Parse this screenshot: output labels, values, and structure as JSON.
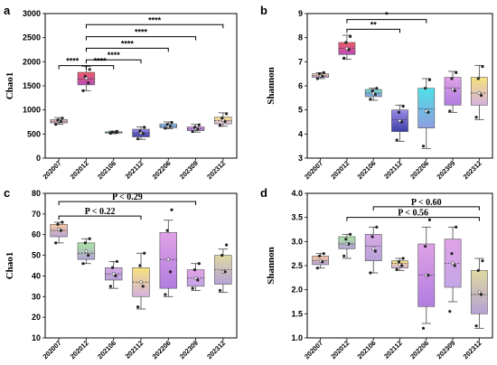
{
  "chart_data": [
    {
      "panel": "a",
      "type": "box",
      "ylabel": "Chao1",
      "ylim": [
        0,
        3000
      ],
      "yticks": [
        0,
        500,
        1000,
        1500,
        2000,
        2500,
        3000
      ],
      "categories": [
        "202007",
        "202012",
        "202106",
        "202112",
        "202206",
        "202309",
        "202312"
      ],
      "colors": [
        [
          "#f6c79e",
          "#b6a2d6"
        ],
        [
          "#f05a64",
          "#b64fbd"
        ],
        [
          "#6ed9c9",
          "#8a9fe0"
        ],
        [
          "#9a8ce8",
          "#3d3fa8"
        ],
        [
          "#7fd1f0",
          "#8e9ee0"
        ],
        [
          "#e0a2e6",
          "#b07de0"
        ],
        [
          "#f7e27a",
          "#d3b1e0"
        ]
      ],
      "boxes": [
        {
          "whislo": 700,
          "q1": 730,
          "med": 765,
          "mean": 770,
          "q3": 800,
          "whishi": 840,
          "points": [
            700,
            760,
            790,
            830
          ]
        },
        {
          "whislo": 1400,
          "q1": 1520,
          "med": 1640,
          "mean": 1660,
          "q3": 1780,
          "whishi": 1900,
          "points": [
            1400,
            1560,
            1700,
            1840
          ]
        },
        {
          "whislo": 510,
          "q1": 520,
          "med": 530,
          "mean": 532,
          "q3": 545,
          "whishi": 560,
          "points": [
            515,
            530,
            540,
            555
          ]
        },
        {
          "whislo": 390,
          "q1": 440,
          "med": 520,
          "mean": 520,
          "q3": 600,
          "whishi": 650,
          "points": [
            400,
            510,
            560,
            640
          ]
        },
        {
          "whislo": 610,
          "q1": 630,
          "med": 660,
          "mean": 665,
          "q3": 710,
          "whishi": 750,
          "points": [
            620,
            660,
            700,
            740
          ]
        },
        {
          "whislo": 540,
          "q1": 570,
          "med": 610,
          "mean": 610,
          "q3": 650,
          "whishi": 700,
          "points": [
            550,
            600,
            640,
            690
          ]
        },
        {
          "whislo": 660,
          "q1": 710,
          "med": 780,
          "mean": 790,
          "q3": 850,
          "whishi": 940,
          "points": [
            680,
            760,
            830,
            920
          ]
        }
      ],
      "comparisons": [
        {
          "from": 0,
          "to": 1,
          "y": 1920,
          "label": "****"
        },
        {
          "from": 1,
          "to": 2,
          "y": 1920,
          "label": "****"
        },
        {
          "from": 1,
          "to": 3,
          "y": 2040,
          "label": "****"
        },
        {
          "from": 1,
          "to": 4,
          "y": 2280,
          "label": "****"
        },
        {
          "from": 1,
          "to": 5,
          "y": 2520,
          "label": "****"
        },
        {
          "from": 1,
          "to": 6,
          "y": 2770,
          "label": "****"
        }
      ]
    },
    {
      "panel": "b",
      "type": "box",
      "ylabel": "Shannon",
      "ylim": [
        3,
        9
      ],
      "yticks": [
        3,
        4,
        5,
        6,
        7,
        8,
        9
      ],
      "categories": [
        "202007",
        "202012",
        "202106",
        "202112",
        "202206",
        "202309",
        "202312"
      ],
      "colors": [
        [
          "#f6c79e",
          "#b6a2d6"
        ],
        [
          "#f05a64",
          "#b64fbd"
        ],
        [
          "#6ed9c9",
          "#8a9fe0"
        ],
        [
          "#9a8ce8",
          "#3d3fa8"
        ],
        [
          "#4fe0e8",
          "#8e9ee0"
        ],
        [
          "#e0a2e6",
          "#b07de0"
        ],
        [
          "#f7e27a",
          "#d3b1e0"
        ]
      ],
      "boxes": [
        {
          "whislo": 6.3,
          "q1": 6.35,
          "med": 6.42,
          "mean": 6.43,
          "q3": 6.5,
          "whishi": 6.55,
          "points": [
            6.3,
            6.4,
            6.5,
            6.55
          ]
        },
        {
          "whislo": 7.1,
          "q1": 7.3,
          "med": 7.55,
          "mean": 7.55,
          "q3": 7.8,
          "whishi": 8.1,
          "points": [
            7.15,
            7.5,
            7.8,
            8.05
          ]
        },
        {
          "whislo": 5.4,
          "q1": 5.55,
          "med": 5.7,
          "mean": 5.68,
          "q3": 5.85,
          "whishi": 5.9,
          "points": [
            5.45,
            5.65,
            5.8,
            5.9
          ]
        },
        {
          "whislo": 3.7,
          "q1": 4.1,
          "med": 4.6,
          "mean": 4.55,
          "q3": 5.0,
          "whishi": 5.2,
          "points": [
            3.75,
            4.5,
            4.9,
            5.15
          ]
        },
        {
          "whislo": 3.4,
          "q1": 4.25,
          "med": 5.05,
          "mean": 4.95,
          "q3": 5.9,
          "whishi": 6.3,
          "points": [
            3.5,
            4.9,
            5.9,
            6.25
          ]
        },
        {
          "whislo": 4.9,
          "q1": 5.2,
          "med": 5.9,
          "mean": 5.85,
          "q3": 6.35,
          "whishi": 6.6,
          "points": [
            4.95,
            5.8,
            6.3,
            6.55
          ]
        },
        {
          "whislo": 4.6,
          "q1": 5.2,
          "med": 5.7,
          "mean": 5.7,
          "q3": 6.35,
          "whishi": 6.85,
          "points": [
            4.7,
            5.6,
            6.3,
            6.8
          ]
        }
      ],
      "comparisons": [
        {
          "from": 1,
          "to": 3,
          "y": 8.35,
          "label": "**"
        },
        {
          "from": 1,
          "to": 4,
          "y": 8.75,
          "label": "*"
        }
      ]
    },
    {
      "panel": "c",
      "type": "box",
      "ylabel": "Chao1",
      "ylim": [
        10,
        80
      ],
      "yticks": [
        10,
        20,
        30,
        40,
        50,
        60,
        70,
        80
      ],
      "categories": [
        "202007",
        "202012",
        "202106",
        "202112",
        "202206",
        "202309",
        "202312"
      ],
      "colors": [
        [
          "#f6c79e",
          "#b6a2d6"
        ],
        [
          "#a8e6a0",
          "#b6a2d6"
        ],
        [
          "#d7a9e6",
          "#b6a2d6"
        ],
        [
          "#f7e27a",
          "#d3b1e0"
        ],
        [
          "#e0a2e6",
          "#b07de0"
        ],
        [
          "#e0a2e6",
          "#c3a6e6"
        ],
        [
          "#dfd9a0",
          "#b6a2d6"
        ]
      ],
      "boxes": [
        {
          "whislo": 56,
          "q1": 59,
          "med": 62,
          "mean": 62.5,
          "q3": 65,
          "whishi": 66,
          "points": [
            56,
            62,
            65,
            66
          ]
        },
        {
          "whislo": 46,
          "q1": 48,
          "med": 51,
          "mean": 52,
          "q3": 56,
          "whishi": 58,
          "points": [
            46,
            50,
            56,
            58
          ]
        },
        {
          "whislo": 34,
          "q1": 38,
          "med": 41,
          "mean": 41,
          "q3": 44,
          "whishi": 47,
          "points": [
            35,
            40,
            44,
            47
          ]
        },
        {
          "whislo": 24,
          "q1": 30,
          "med": 37,
          "mean": 37,
          "q3": 44,
          "whishi": 51,
          "points": [
            25,
            35,
            45,
            51
          ]
        },
        {
          "whislo": 30,
          "q1": 34,
          "med": 48,
          "mean": 48,
          "q3": 61,
          "whishi": 67,
          "points": [
            31,
            42,
            62,
            72
          ]
        },
        {
          "whislo": 33,
          "q1": 35,
          "med": 39,
          "mean": 39,
          "q3": 43,
          "whishi": 46,
          "points": [
            34,
            38,
            43,
            46
          ]
        },
        {
          "whislo": 32,
          "q1": 36,
          "med": 43,
          "mean": 42,
          "q3": 50,
          "whishi": 53,
          "points": [
            33,
            42,
            50,
            55
          ]
        }
      ],
      "comparisons": [
        {
          "from": 0,
          "to": 3,
          "y": 69,
          "label": "P < 0.22"
        },
        {
          "from": 0,
          "to": 5,
          "y": 76,
          "label": "P < 0.29"
        }
      ]
    },
    {
      "panel": "d",
      "type": "box",
      "ylabel": "Shannon",
      "ylim": [
        1.0,
        4.0
      ],
      "yticks": [
        1.0,
        1.5,
        2.0,
        2.5,
        3.0,
        3.5,
        4.0
      ],
      "categories": [
        "202007",
        "202012",
        "202106",
        "202112",
        "202206",
        "202309",
        "202312"
      ],
      "colors": [
        [
          "#f6c79e",
          "#b6a2d6"
        ],
        [
          "#a8e6a0",
          "#b6a2d6"
        ],
        [
          "#d7a9e6",
          "#b6a2d6"
        ],
        [
          "#f7e27a",
          "#d3b1e0"
        ],
        [
          "#e0a2e6",
          "#b07de0"
        ],
        [
          "#e0a2e6",
          "#c3a6e6"
        ],
        [
          "#dfd9a0",
          "#b6a2d6"
        ]
      ],
      "boxes": [
        {
          "whislo": 2.45,
          "q1": 2.52,
          "med": 2.6,
          "mean": 2.6,
          "q3": 2.7,
          "whishi": 2.75,
          "points": [
            2.45,
            2.58,
            2.7,
            2.75
          ]
        },
        {
          "whislo": 2.65,
          "q1": 2.85,
          "med": 2.95,
          "mean": 2.95,
          "q3": 3.1,
          "whishi": 3.15,
          "points": [
            2.7,
            2.95,
            3.05,
            3.15
          ]
        },
        {
          "whislo": 2.35,
          "q1": 2.6,
          "med": 2.9,
          "mean": 2.85,
          "q3": 3.15,
          "whishi": 3.3,
          "points": [
            2.35,
            2.8,
            3.1,
            3.3
          ]
        },
        {
          "whislo": 2.4,
          "q1": 2.45,
          "med": 2.55,
          "mean": 2.52,
          "q3": 2.6,
          "whishi": 2.65,
          "points": [
            2.42,
            2.5,
            2.58,
            2.65
          ]
        },
        {
          "whislo": 1.3,
          "q1": 1.65,
          "med": 2.3,
          "mean": 2.3,
          "q3": 2.95,
          "whishi": 3.3,
          "points": [
            1.2,
            2.3,
            2.9,
            3.45
          ]
        },
        {
          "whislo": 1.75,
          "q1": 2.05,
          "med": 2.55,
          "mean": 2.55,
          "q3": 3.05,
          "whishi": 3.3,
          "points": [
            1.55,
            2.5,
            2.75,
            3.3
          ]
        },
        {
          "whislo": 1.2,
          "q1": 1.5,
          "med": 1.9,
          "mean": 1.95,
          "q3": 2.4,
          "whishi": 2.65,
          "points": [
            1.25,
            1.9,
            2.4,
            2.6
          ]
        }
      ],
      "comparisons": [
        {
          "from": 1,
          "to": 6,
          "y": 3.5,
          "label": "P < 0.56"
        },
        {
          "from": 2,
          "to": 6,
          "y": 3.72,
          "label": "P < 0.60"
        }
      ]
    }
  ]
}
